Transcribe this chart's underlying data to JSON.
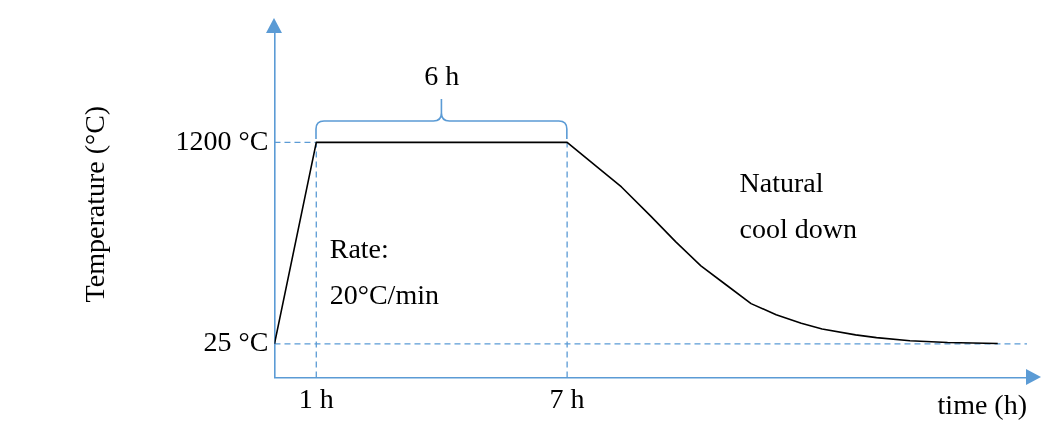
{
  "chart_data": {
    "type": "line",
    "xlabel": "time (h)",
    "ylabel": "Temperature (°C)",
    "x": [
      0,
      1,
      7,
      7.7,
      8.3,
      9.0,
      9.6,
      10.2,
      10.8,
      11.4,
      12.0,
      12.6,
      13.1,
      13.9,
      14.4,
      15.2,
      16.1,
      17.3
    ],
    "series": [
      {
        "color": "#000000",
        "values": [
          25,
          1200,
          1200,
          1060,
          940,
          770,
          620,
          480,
          370,
          260,
          195,
          145,
          112,
          78,
          62,
          44,
          33,
          28
        ]
      },
      {
        "x": [
          0,
          1
        ],
        "color": "#5b9bd5",
        "line_style": "dashed",
        "values": [
          1200,
          1200
        ]
      }
    ],
    "xlim": [
      0,
      18
    ],
    "xticks": [
      {
        "value": 1,
        "label": "1 h"
      },
      {
        "value": 7,
        "label": "7 h"
      }
    ],
    "ylim": [
      -170,
      1850
    ],
    "yticks": [
      {
        "value": 25,
        "label": "25 °C"
      },
      {
        "value": 1200,
        "label": "1200 °C"
      }
    ],
    "grid": false,
    "legend": false,
    "marker": "none",
    "ref_lines": [
      {
        "axis": "x",
        "value": 1,
        "color": "#5b9bd5",
        "line_style": "dashed"
      },
      {
        "axis": "x",
        "value": 7,
        "color": "#5b9bd5",
        "line_style": "dashed"
      },
      {
        "axis": "y",
        "value": 25,
        "color": "#5b9bd5",
        "line_style": "dashed"
      }
    ],
    "annotations": [
      {
        "text": "6 h",
        "x": 4,
        "y": 1200
      },
      "Rate:\n20°C/min",
      "Natural\ncool down"
    ]
  }
}
